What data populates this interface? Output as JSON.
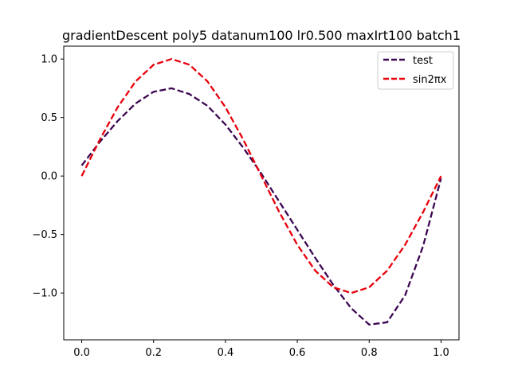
{
  "chart_data": {
    "type": "line",
    "title": "gradientDescent poly5 datanum100 lr0.500 maxIrt100 batch1",
    "xlabel": "",
    "ylabel": "",
    "xlim": [
      -0.05,
      1.05
    ],
    "ylim": [
      -1.4,
      1.11
    ],
    "xticks": [
      0.0,
      0.2,
      0.4,
      0.6,
      0.8,
      1.0
    ],
    "xtick_labels": [
      "0.0",
      "0.2",
      "0.4",
      "0.6",
      "0.8",
      "1.0"
    ],
    "yticks": [
      -1.0,
      -0.5,
      0.0,
      0.5,
      1.0
    ],
    "ytick_labels": [
      "−1.0",
      "−0.5",
      "0.0",
      "0.5",
      "1.0"
    ],
    "grid": false,
    "legend_position": "top-right",
    "series": [
      {
        "name": "test",
        "color": "#3c0752",
        "style": "dashed",
        "x": [
          0.0,
          0.05,
          0.1,
          0.15,
          0.2,
          0.25,
          0.3,
          0.35,
          0.4,
          0.45,
          0.5,
          0.55,
          0.6,
          0.65,
          0.7,
          0.75,
          0.8,
          0.85,
          0.9,
          0.95,
          1.0
        ],
        "y": [
          0.09,
          0.29,
          0.47,
          0.62,
          0.72,
          0.75,
          0.7,
          0.6,
          0.44,
          0.24,
          0.02,
          -0.22,
          -0.46,
          -0.7,
          -0.93,
          -1.13,
          -1.27,
          -1.25,
          -1.02,
          -0.6,
          -0.02
        ]
      },
      {
        "name": "sin2πx",
        "color": "#e8000b",
        "style": "dashed",
        "x": [
          0.0,
          0.05,
          0.1,
          0.15,
          0.2,
          0.25,
          0.3,
          0.35,
          0.4,
          0.45,
          0.5,
          0.55,
          0.6,
          0.65,
          0.7,
          0.75,
          0.8,
          0.85,
          0.9,
          0.95,
          1.0
        ],
        "y": [
          0.0,
          0.309,
          0.588,
          0.809,
          0.951,
          1.0,
          0.951,
          0.809,
          0.588,
          0.309,
          0.0,
          -0.309,
          -0.588,
          -0.809,
          -0.951,
          -1.0,
          -0.951,
          -0.809,
          -0.588,
          -0.309,
          0.0
        ]
      }
    ]
  }
}
